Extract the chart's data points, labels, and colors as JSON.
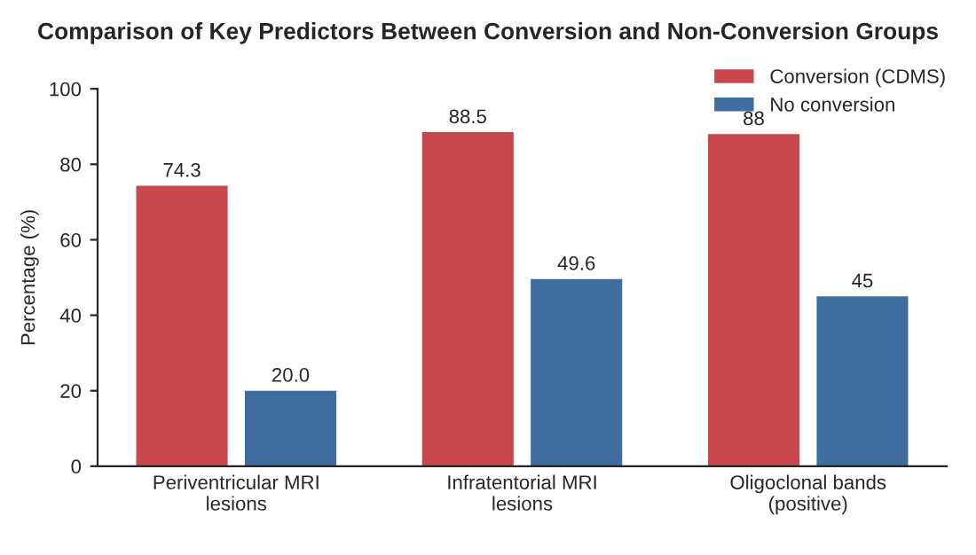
{
  "chart_data": {
    "type": "bar",
    "title": "Comparison of Key Predictors Between Conversion and Non-Conversion Groups",
    "ylabel": "Percentage (%)",
    "categories": [
      "Periventricular MRI\nlesions",
      "Infratentorial MRI\nlesions",
      "Oligoclonal bands\n(positive)"
    ],
    "series": [
      {
        "name": "Conversion (CDMS)",
        "color": "#c8474d",
        "values": [
          74.3,
          88.5,
          88
        ],
        "value_labels": [
          "74.3",
          "88.5",
          "88"
        ]
      },
      {
        "name": "No conversion",
        "color": "#3e6d9e",
        "values": [
          20.0,
          49.6,
          45
        ],
        "value_labels": [
          "20.0",
          "49.6",
          "45"
        ]
      }
    ],
    "ylim": [
      0,
      100
    ],
    "yticks": [
      0,
      20,
      40,
      60,
      80,
      100
    ],
    "grid": false,
    "legend": "top right"
  }
}
